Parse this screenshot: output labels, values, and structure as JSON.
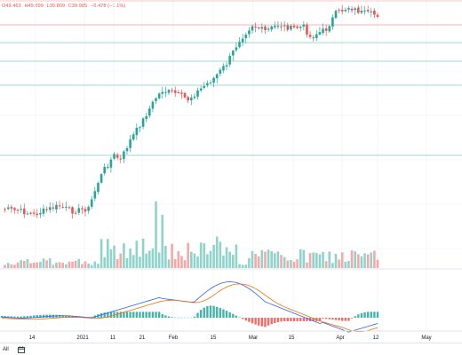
{
  "legend": {
    "open": "O49.463",
    "high": "H49.899",
    "low": "L39.809",
    "close": "C39.985",
    "change": "−0.478 (−1.1%)"
  },
  "colors": {
    "up": "#26a69a",
    "down": "#ef5350",
    "volume_up": "#8fd3cb",
    "volume_down": "#f4a9a7",
    "macd_line": "#2962ff",
    "signal_line": "#ff6d00",
    "grid": "#eceff3"
  },
  "time_axis": {
    "labels": [
      "14",
      "2021",
      "11",
      "21",
      "Feb",
      "15",
      "Mar",
      "15",
      "Apr",
      "12",
      "May"
    ]
  },
  "bottom_bar": {
    "range_label": "All",
    "tool_icon": "calendar-range-icon"
  },
  "chart_data": {
    "type": "candlestick",
    "title": "",
    "series": [
      {
        "name": "price",
        "kind": "candlestick"
      },
      {
        "name": "volume",
        "kind": "bar"
      },
      {
        "name": "macd",
        "kind": "line"
      },
      {
        "name": "signal",
        "kind": "line"
      },
      {
        "name": "histogram",
        "kind": "bar"
      }
    ],
    "x_tick_labels": [
      "14",
      "2021",
      "11",
      "21",
      "Feb",
      "15",
      "Mar",
      "15",
      "Apr",
      "12",
      "May"
    ],
    "last_close": 39.985,
    "horizontal_levels": [
      {
        "color": "#ef5350",
        "level": "upper"
      },
      {
        "color": "#26a69a",
        "level": "green-1"
      },
      {
        "color": "#26a69a",
        "level": "green-2"
      },
      {
        "color": "#26a69a",
        "level": "teal"
      },
      {
        "color": "#26a69a",
        "level": "lower"
      }
    ],
    "grid": true
  }
}
